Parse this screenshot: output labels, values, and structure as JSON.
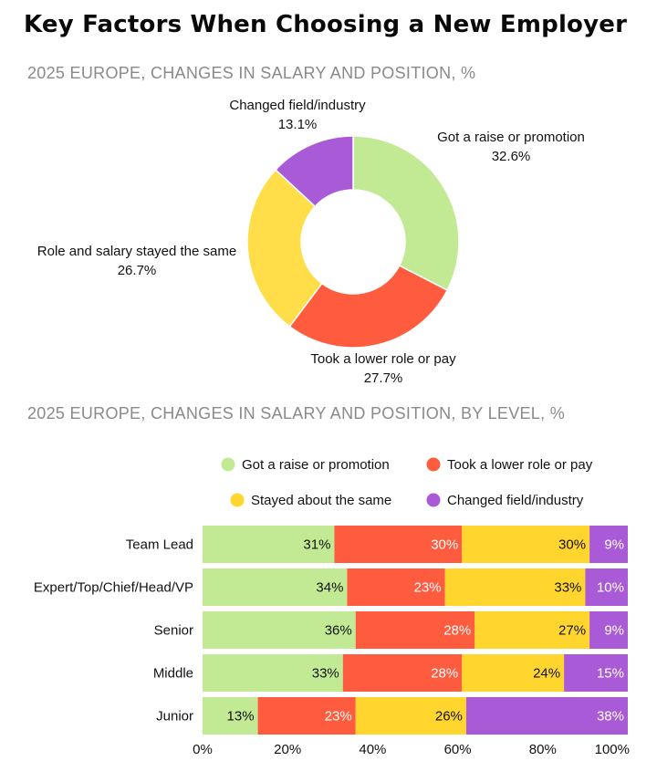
{
  "title": "Key Factors When Choosing a New Employer",
  "chart_data": [
    {
      "type": "pie",
      "title": "2025 EUROPE, CHANGES IN SALARY AND POSITION, %",
      "donut": true,
      "slices": [
        {
          "label": "Got a raise or promotion",
          "value": 32.6,
          "display": "32.6%",
          "color": "#c2ea94"
        },
        {
          "label": "Took a lower role or pay",
          "value": 27.7,
          "display": "27.7%",
          "color": "#ff5b3f"
        },
        {
          "label": "Role and salary stayed the same",
          "value": 26.7,
          "display": "26.7%",
          "color": "#ffde49"
        },
        {
          "label": "Changed field/industry",
          "value": 13.1,
          "display": "13.1%",
          "color": "#a95ad6"
        }
      ]
    },
    {
      "type": "bar",
      "orientation": "horizontal",
      "stacked": true,
      "title": "2025 EUROPE, CHANGES IN SALARY AND POSITION, BY LEVEL, %",
      "categories": [
        "Team Lead",
        "Expert/Top/Chief/Head/VP",
        "Senior",
        "Middle",
        "Junior"
      ],
      "series": [
        {
          "name": "Got a raise or promotion",
          "color": "#c2ea94",
          "text_color": "#111111",
          "values": [
            31,
            34,
            36,
            33,
            13
          ]
        },
        {
          "name": "Took a lower role or pay",
          "color": "#ff5b3f",
          "text_color": "#ffffff",
          "values": [
            30,
            23,
            28,
            28,
            23
          ]
        },
        {
          "name": "Stayed about the same",
          "color": "#ffd52e",
          "text_color": "#111111",
          "values": [
            30,
            33,
            27,
            24,
            26
          ]
        },
        {
          "name": "Changed field/industry",
          "color": "#a95ad6",
          "text_color": "#ffffff",
          "values": [
            9,
            10,
            9,
            15,
            38
          ]
        }
      ],
      "xlim": [
        0,
        100
      ],
      "xticks": [
        "0%",
        "20%",
        "40%",
        "60%",
        "80%",
        "100%"
      ],
      "legend": "top"
    }
  ]
}
